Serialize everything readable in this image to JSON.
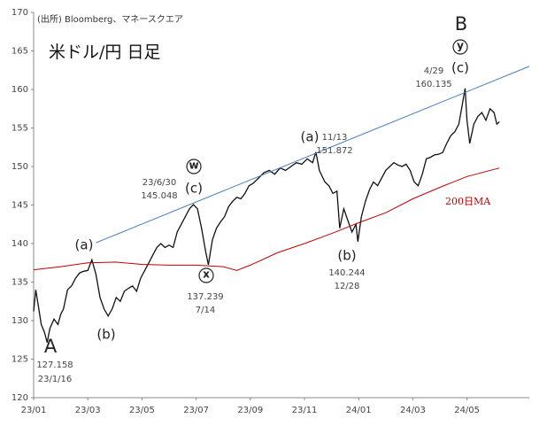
{
  "chart_data": {
    "type": "line",
    "title": "米ドル/円 日足",
    "subtitle": "(出所) Bloomberg、マネースクエア",
    "xlim": [
      0,
      18.3
    ],
    "xticks": [
      {
        "value": 0,
        "label": "23/01"
      },
      {
        "value": 2,
        "label": "23/03"
      },
      {
        "value": 4,
        "label": "23/05"
      },
      {
        "value": 6,
        "label": "23/07"
      },
      {
        "value": 8,
        "label": "23/09"
      },
      {
        "value": 10,
        "label": "23/11"
      },
      {
        "value": 12,
        "label": "24/01"
      },
      {
        "value": 14,
        "label": "24/03"
      },
      {
        "value": 16,
        "label": "24/05"
      }
    ],
    "ylim": [
      120,
      170
    ],
    "yticks": [
      120,
      125,
      130,
      135,
      140,
      145,
      150,
      155,
      160,
      165,
      170
    ],
    "grid": false,
    "series": [
      {
        "color": "#111111",
        "x": [
          0.0,
          0.08,
          0.17,
          0.28,
          0.4,
          0.5,
          0.6,
          0.75,
          0.9,
          1.0,
          1.1,
          1.25,
          1.4,
          1.55,
          1.7,
          1.85,
          2.0,
          2.15,
          2.3,
          2.45,
          2.6,
          2.75,
          2.9,
          3.05,
          3.2,
          3.35,
          3.5,
          3.65,
          3.8,
          3.95,
          4.1,
          4.25,
          4.4,
          4.55,
          4.7,
          4.85,
          5.0,
          5.15,
          5.3,
          5.45,
          5.6,
          5.75,
          5.9,
          6.05,
          6.2,
          6.35,
          6.45,
          6.6,
          6.75,
          6.9,
          7.05,
          7.2,
          7.35,
          7.5,
          7.65,
          7.8,
          7.95,
          8.1,
          8.3,
          8.5,
          8.7,
          8.9,
          9.1,
          9.3,
          9.5,
          9.7,
          9.9,
          10.1,
          10.3,
          10.42,
          10.55,
          10.75,
          10.9,
          11.05,
          11.2,
          11.3,
          11.45,
          11.6,
          11.75,
          11.9,
          11.97,
          12.1,
          12.25,
          12.4,
          12.55,
          12.7,
          12.85,
          13.0,
          13.15,
          13.3,
          13.45,
          13.6,
          13.75,
          13.9,
          14.05,
          14.2,
          14.35,
          14.5,
          14.65,
          14.8,
          14.95,
          15.1,
          15.25,
          15.4,
          15.55,
          15.7,
          15.85,
          15.93,
          16.0,
          16.1,
          16.25,
          16.4,
          16.55,
          16.7,
          16.85,
          17.0,
          17.1,
          17.2
        ],
        "values": [
          131.2,
          134.0,
          132.0,
          129.5,
          128.5,
          127.158,
          129.0,
          130.2,
          129.5,
          130.8,
          131.5,
          134.0,
          134.5,
          135.5,
          136.2,
          136.4,
          136.5,
          137.9,
          136.0,
          133.0,
          131.5,
          130.6,
          131.5,
          133.0,
          132.5,
          133.8,
          134.2,
          134.5,
          133.8,
          135.5,
          136.5,
          137.5,
          138.5,
          139.5,
          140.0,
          139.5,
          139.8,
          139.5,
          141.5,
          142.5,
          143.5,
          144.5,
          145.048,
          144.5,
          142.0,
          139.0,
          137.239,
          140.5,
          142.0,
          142.8,
          143.5,
          144.8,
          145.5,
          146.0,
          145.8,
          146.5,
          147.5,
          147.8,
          148.5,
          149.2,
          149.5,
          149.0,
          149.8,
          149.5,
          150.0,
          150.5,
          150.3,
          151.0,
          150.5,
          151.872,
          149.5,
          148.0,
          147.5,
          146.5,
          146.8,
          142.0,
          144.5,
          143.0,
          141.5,
          142.5,
          140.244,
          143.5,
          145.5,
          147.0,
          148.0,
          147.5,
          148.5,
          149.5,
          150.0,
          150.5,
          150.2,
          150.0,
          150.3,
          149.5,
          148.0,
          147.5,
          149.0,
          151.0,
          151.2,
          151.5,
          151.6,
          151.8,
          153.0,
          154.0,
          154.5,
          155.5,
          158.5,
          160.135,
          156.0,
          153.0,
          155.5,
          156.5,
          157.0,
          156.0,
          157.5,
          157.0,
          155.5,
          155.8
        ]
      },
      {
        "name": "200日MA",
        "color": "#c00000",
        "x": [
          0,
          1,
          2,
          3,
          4,
          5,
          6,
          7,
          7.5,
          8,
          9,
          10,
          11,
          12,
          13,
          14,
          15,
          16,
          17.2
        ],
        "values": [
          136.6,
          137.0,
          137.5,
          137.6,
          137.3,
          137.2,
          137.2,
          137.0,
          136.5,
          137.2,
          138.8,
          140.0,
          141.3,
          142.7,
          144.0,
          145.8,
          147.3,
          148.7,
          149.8
        ]
      },
      {
        "color": "#4a7ebb",
        "x": [
          2.3,
          18.3
        ],
        "values": [
          140.1,
          163.0
        ]
      }
    ],
    "annotations": [
      "A",
      "127.158",
      "23/1/16",
      "(a)",
      "(b)",
      "23/6/30",
      "145.048",
      "w",
      "(c)",
      "x",
      "137.239",
      "7/14",
      "(a)",
      "11/13",
      "151.872",
      "(b)",
      "140.244",
      "12/28",
      "B",
      "y",
      "(c)",
      "4/29",
      "160.135"
    ]
  }
}
